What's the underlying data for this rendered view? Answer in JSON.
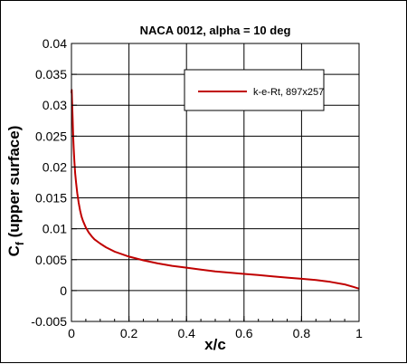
{
  "chart_data": {
    "type": "line",
    "title": "NACA 0012, alpha = 10 deg",
    "xlabel": "x/c",
    "ylabel_main": "C",
    "ylabel_sub": "f",
    "ylabel_rest": " (upper surface)",
    "xlim": [
      0,
      1
    ],
    "ylim": [
      -0.005,
      0.04
    ],
    "xticks": [
      0,
      0.2,
      0.4,
      0.6,
      0.8,
      1
    ],
    "xtick_labels": [
      "0",
      "0.2",
      "0.4",
      "0.6",
      "0.8",
      "1"
    ],
    "yticks": [
      -0.005,
      0,
      0.005,
      0.01,
      0.015,
      0.02,
      0.025,
      0.03,
      0.035,
      0.04
    ],
    "ytick_labels": [
      "-0.005",
      "0",
      "0.005",
      "0.01",
      "0.015",
      "0.02",
      "0.025",
      "0.03",
      "0.035",
      "0.04"
    ],
    "grid": true,
    "legend_position": "top-right",
    "series": [
      {
        "name": "k-e-Rt, 897x257",
        "color": "#c00000",
        "x": [
          0,
          0.001,
          0.002,
          0.004,
          0.006,
          0.008,
          0.01,
          0.013,
          0.016,
          0.02,
          0.025,
          0.03,
          0.035,
          0.04,
          0.05,
          0.06,
          0.07,
          0.08,
          0.1,
          0.12,
          0.15,
          0.2,
          0.25,
          0.3,
          0.35,
          0.4,
          0.45,
          0.5,
          0.55,
          0.6,
          0.65,
          0.7,
          0.75,
          0.8,
          0.85,
          0.9,
          0.95,
          0.98,
          1
        ],
        "y": [
          0.032,
          0.0325,
          0.031,
          0.028,
          0.025,
          0.023,
          0.021,
          0.019,
          0.0175,
          0.0158,
          0.0142,
          0.013,
          0.012,
          0.0113,
          0.0102,
          0.0094,
          0.0088,
          0.0083,
          0.0076,
          0.007,
          0.0063,
          0.0055,
          0.0049,
          0.0044,
          0.004,
          0.0037,
          0.0034,
          0.0031,
          0.0029,
          0.0027,
          0.0025,
          0.0023,
          0.0021,
          0.0019,
          0.0017,
          0.0014,
          0.001,
          0.0006,
          0.0003
        ]
      }
    ]
  }
}
